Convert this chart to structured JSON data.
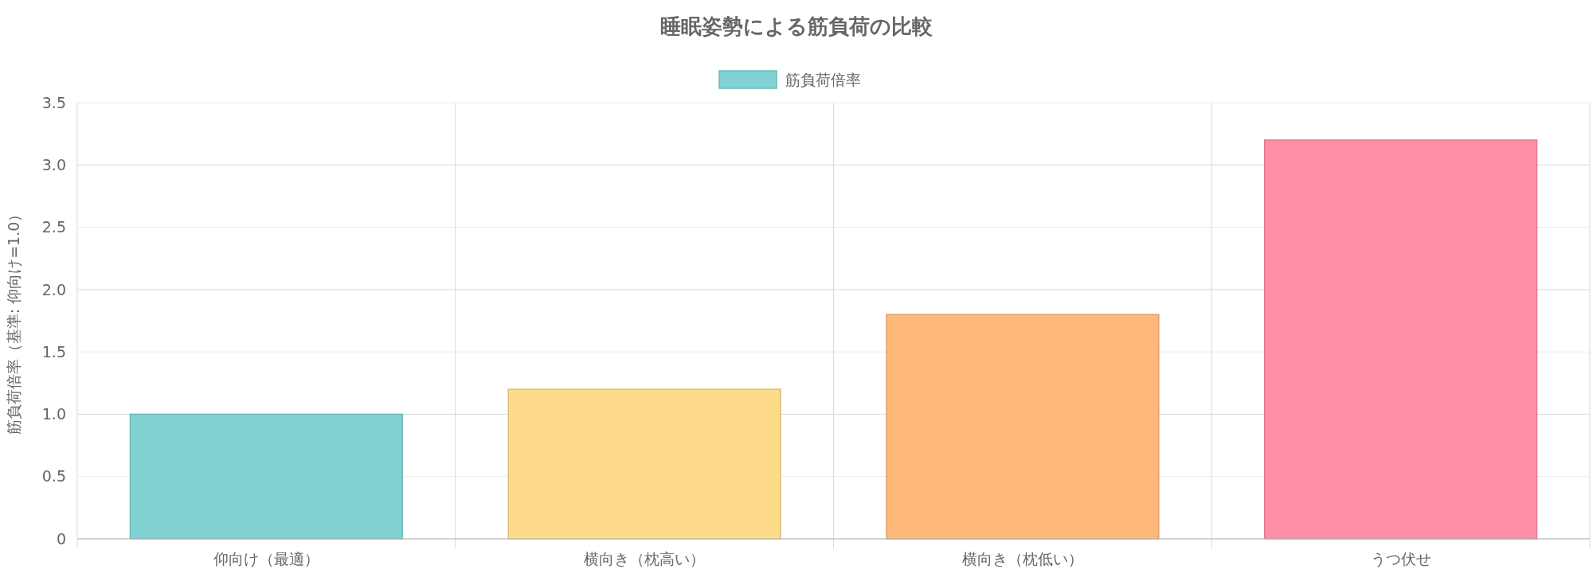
{
  "chart_data": {
    "type": "bar",
    "title": "睡眠姿勢による筋負荷の比較",
    "ylabel": "筋負荷倍率（基準: 仰向け=1.0）",
    "categories": [
      "仰向け（最適）",
      "横向き（枕高い）",
      "横向き（枕低い）",
      "うつ伏せ"
    ],
    "series": [
      {
        "name": "筋負荷倍率",
        "colors": [
          "#80d3d2",
          "#fddb8b",
          "#feb97a",
          "#ff8fa6"
        ],
        "values": [
          1.0,
          1.2,
          1.8,
          3.2
        ]
      }
    ],
    "ylim": [
      0,
      3.5
    ],
    "yticks": [
      0,
      {
        "value": 0.5,
        "label": "0.5"
      },
      {
        "value": 1,
        "label": "1.0"
      },
      {
        "value": 1.5,
        "label": "1.5"
      },
      {
        "value": 2,
        "label": "2.0"
      },
      {
        "value": 2.5,
        "label": "2.5"
      },
      {
        "value": 3,
        "label": "3.0"
      },
      {
        "value": 3.5,
        "label": "3.5"
      }
    ],
    "grid": true,
    "legend": "top"
  }
}
